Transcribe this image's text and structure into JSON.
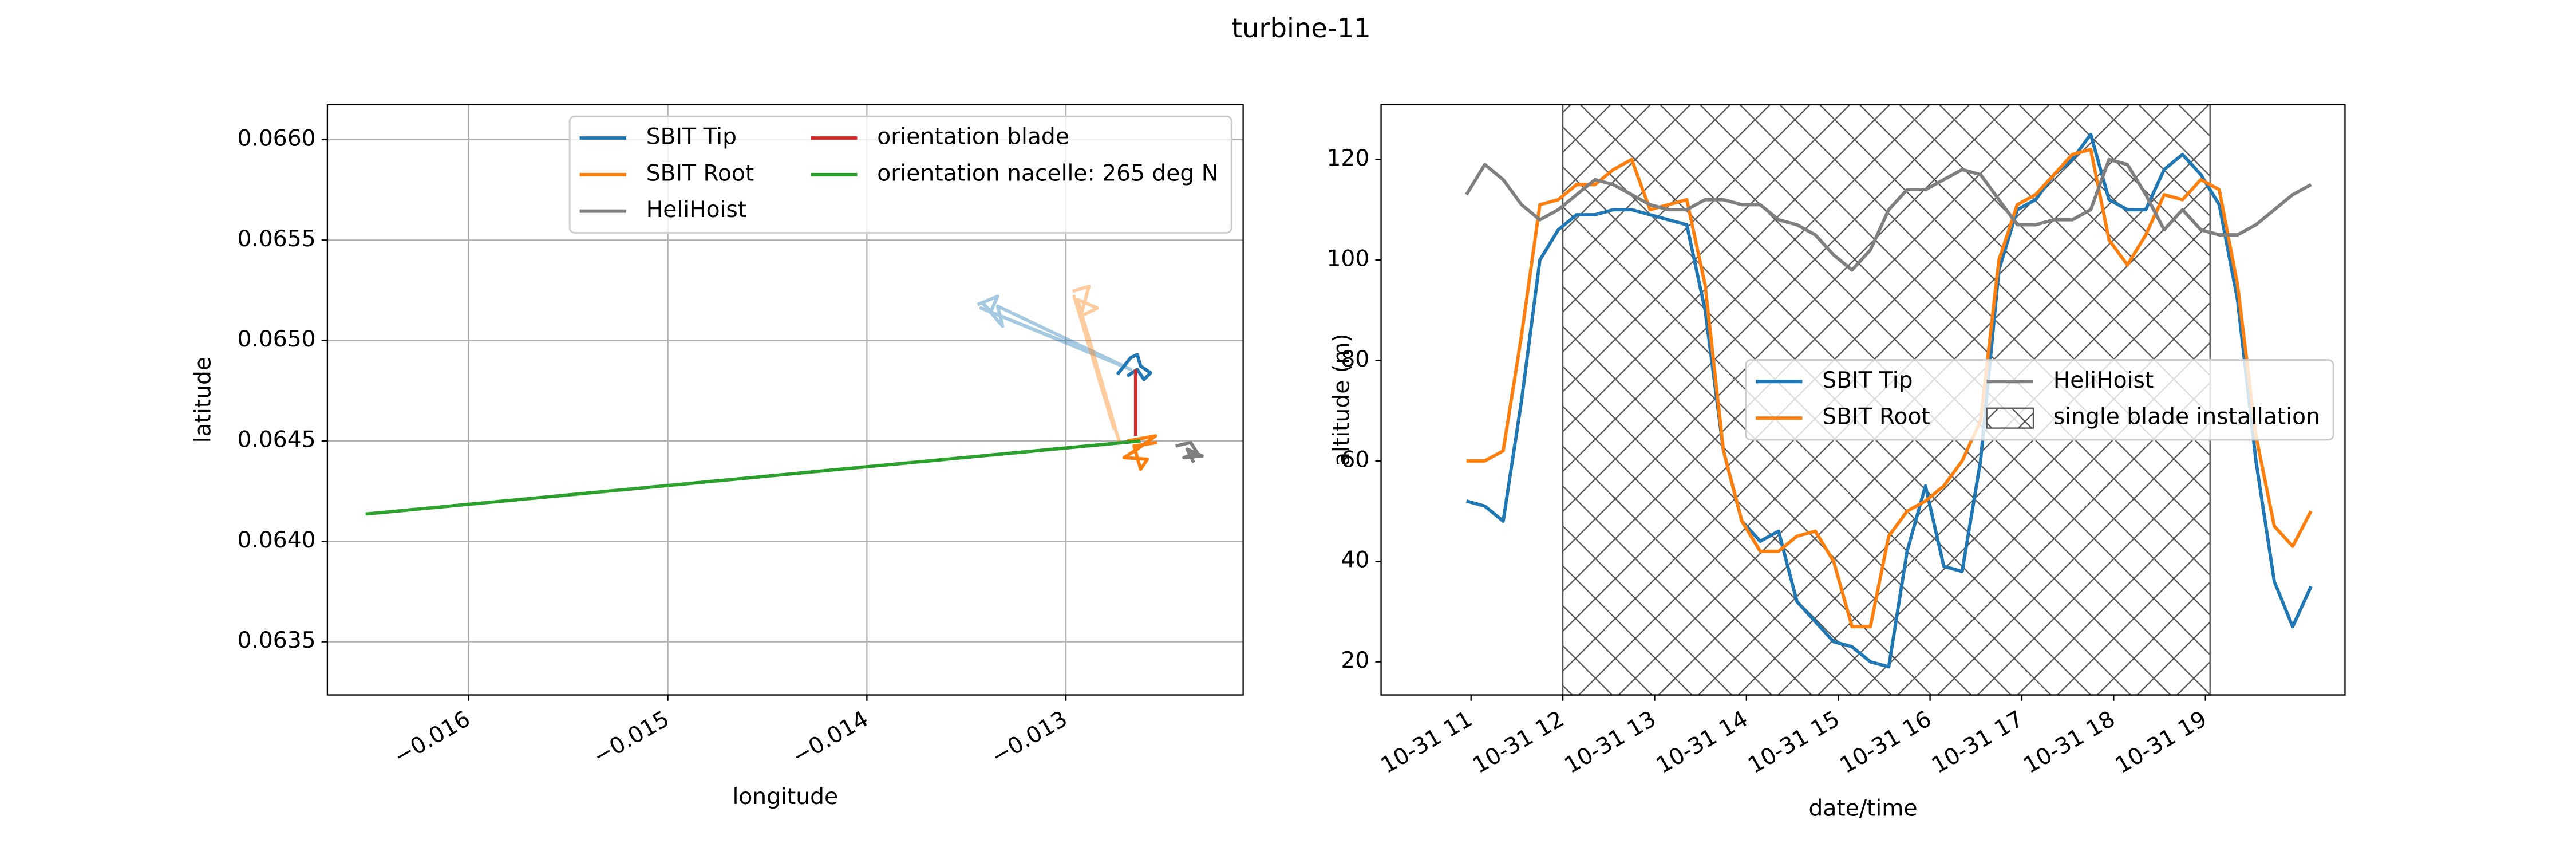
{
  "title": "turbine-11",
  "chart_data": [
    {
      "type": "line",
      "xlabel": "longitude",
      "ylabel": "latitude",
      "grid": true,
      "legend": "upper right",
      "xlim": [
        -0.01671,
        -0.01211
      ],
      "ylim": [
        0.063235,
        0.066174
      ],
      "xticks": [
        {
          "value": -0.016,
          "label": "−0.016"
        },
        {
          "value": -0.015,
          "label": "−0.015"
        },
        {
          "value": -0.014,
          "label": "−0.014"
        },
        {
          "value": -0.013,
          "label": "−0.013"
        }
      ],
      "yticks": [
        0.0635,
        {
          "value": 0.064,
          "label": "0.0640"
        },
        0.0645,
        {
          "value": 0.065,
          "label": "0.0650"
        },
        0.0655,
        {
          "value": 0.066,
          "label": "0.0660"
        }
      ],
      "series": [
        {
          "name": "SBIT Tip",
          "color": "#1f77b4",
          "x": [
            -0.012742,
            -0.012675,
            -0.012642,
            -0.012625,
            -0.012575,
            -0.012608,
            -0.012642,
            -0.012692
          ],
          "values": [
            0.064831,
            0.064914,
            0.06493,
            0.064873,
            0.064839,
            0.064806,
            0.064856,
            0.064823
          ]
        },
        {
          "name": "SBIT Root",
          "color": "#ff7f0e",
          "x": [
            -0.012692,
            -0.01255,
            -0.012642,
            -0.012708,
            -0.012591,
            -0.012625,
            -0.012658,
            -0.012542
          ],
          "values": [
            0.0645,
            0.064525,
            0.064459,
            0.064417,
            0.064409,
            0.064359,
            0.064475,
            0.064492
          ]
        },
        {
          "name": "HeliHoist",
          "color": "#7f7f7f",
          "x": [
            -0.012449,
            -0.012374,
            -0.012341,
            -0.012408,
            -0.012316,
            -0.012391,
            -0.012358
          ],
          "values": [
            0.064475,
            0.064492,
            0.064442,
            0.064417,
            0.064425,
            0.064459,
            0.064392
          ]
        },
        {
          "name": "orientation blade",
          "color": "#d62728",
          "x": [
            -0.01265,
            -0.01265
          ],
          "values": [
            0.064856,
            0.064525
          ]
        },
        {
          "name": "orientation nacelle: 265 deg N",
          "color": "#2ca02c",
          "x": [
            -0.012625,
            -0.016518
          ],
          "values": [
            0.0645,
            0.064136
          ]
        },
        {
          "color": "#1f77b4",
          "opacity": 0.4,
          "x": [
            -0.013444,
            -0.013343,
            -0.013377,
            -0.013419,
            -0.013318,
            -0.013343,
            -0.012675,
            -0.013427,
            -0.012708
          ],
          "values": [
            0.065179,
            0.06522,
            0.065146,
            0.065187,
            0.065071,
            0.065171,
            0.064856,
            0.065162,
            0.064873
          ]
        },
        {
          "color": "#ff7f0e",
          "opacity": 0.4,
          "x": [
            -0.012967,
            -0.012884,
            -0.012926,
            -0.012842,
            -0.012942,
            -0.012775,
            -0.012733,
            -0.012959,
            -0.012758
          ],
          "values": [
            0.065245,
            0.06527,
            0.065121,
            0.065162,
            0.065204,
            0.064641,
            0.0645,
            0.06522,
            0.064558
          ]
        }
      ]
    },
    {
      "type": "line",
      "xlabel": "date/time",
      "ylabel": "altitude (m)",
      "grid": false,
      "legend": "center right",
      "xlim": [
        10.02,
        20.52
      ],
      "ylim": [
        13.4,
        130.9
      ],
      "xticks": [
        {
          "value": 11,
          "label": "10-31 11"
        },
        {
          "value": 12,
          "label": "10-31 12"
        },
        {
          "value": 13,
          "label": "10-31 13"
        },
        {
          "value": 14,
          "label": "10-31 14"
        },
        {
          "value": 15,
          "label": "10-31 15"
        },
        {
          "value": 16,
          "label": "10-31 16"
        },
        {
          "value": 17,
          "label": "10-31 17"
        },
        {
          "value": 18,
          "label": "10-31 18"
        },
        {
          "value": 19,
          "label": "10-31 19"
        }
      ],
      "yticks": [
        20,
        40,
        60,
        80,
        100,
        120
      ],
      "span": {
        "label": "single blade installation",
        "x": [
          12.0,
          19.05
        ],
        "color": "#555555"
      },
      "x": [
        10.95,
        11.15,
        11.35,
        11.55,
        11.75,
        11.95,
        12.15,
        12.35,
        12.55,
        12.75,
        12.95,
        13.15,
        13.35,
        13.55,
        13.75,
        13.95,
        14.15,
        14.35,
        14.55,
        14.75,
        14.95,
        15.15,
        15.35,
        15.55,
        15.75,
        15.95,
        16.15,
        16.35,
        16.55,
        16.75,
        16.95,
        17.15,
        17.35,
        17.55,
        17.75,
        17.95,
        18.15,
        18.35,
        18.55,
        18.75,
        18.95,
        19.15,
        19.35,
        19.55,
        19.75,
        19.95,
        20.15
      ],
      "series": [
        {
          "name": "SBIT Tip",
          "color": "#1f77b4",
          "values": [
            52,
            51,
            48,
            72,
            100,
            106,
            109,
            109,
            110,
            110,
            109,
            108,
            107,
            90,
            62,
            48,
            44,
            46,
            32,
            28,
            24,
            23,
            20,
            19,
            42,
            55,
            39,
            38,
            60,
            98,
            110,
            112,
            117,
            120,
            125,
            112,
            110,
            110,
            118,
            121,
            117,
            111,
            92,
            60,
            36,
            27,
            35
          ]
        },
        {
          "name": "SBIT Root",
          "color": "#ff7f0e",
          "values": [
            60,
            60,
            62,
            85,
            111,
            112,
            115,
            115,
            118,
            120,
            110,
            111,
            112,
            95,
            62,
            48,
            42,
            42,
            45,
            46,
            40,
            27,
            27,
            45,
            50,
            52,
            55,
            60,
            68,
            100,
            111,
            113,
            117,
            121,
            122,
            104,
            99,
            105,
            113,
            112,
            116,
            114,
            95,
            65,
            47,
            43,
            50
          ]
        },
        {
          "name": "HeliHoist",
          "color": "#7f7f7f",
          "values": [
            113,
            119,
            116,
            111,
            108,
            110,
            113,
            116,
            115,
            113,
            111,
            110,
            110,
            112,
            112,
            111,
            111,
            108,
            107,
            105,
            101,
            98,
            102,
            110,
            114,
            114,
            116,
            118,
            117,
            112,
            107,
            107,
            108,
            108,
            110,
            120,
            119,
            113,
            106,
            110,
            106,
            105,
            105,
            107,
            110,
            113,
            115
          ]
        }
      ]
    }
  ]
}
